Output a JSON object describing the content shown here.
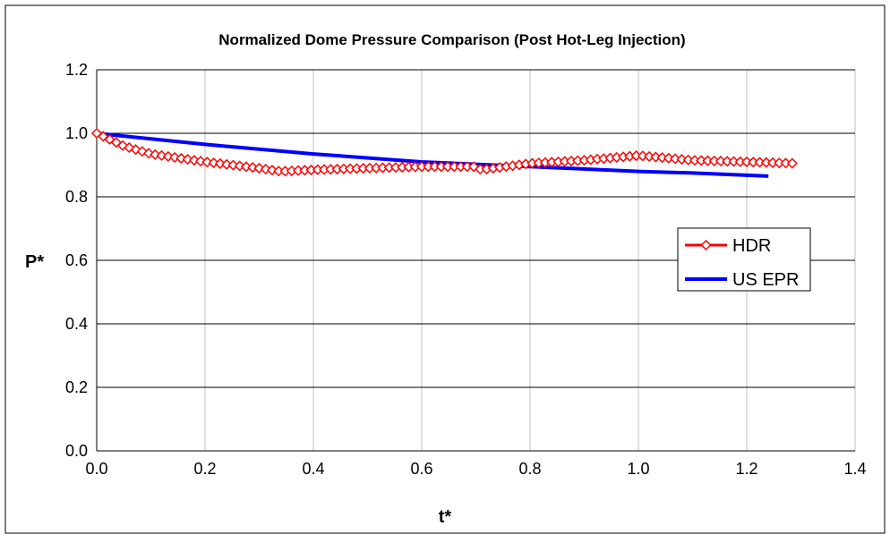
{
  "chart_data": {
    "type": "line",
    "title": "Normalized Dome Pressure Comparison (Post Hot-Leg Injection)",
    "xlabel": "t*",
    "ylabel": "P*",
    "xlim": [
      0,
      1.4
    ],
    "ylim": [
      0,
      1.2
    ],
    "xticks": [
      "0.0",
      "0.2",
      "0.4",
      "0.6",
      "0.8",
      "1.0",
      "1.2",
      "1.4"
    ],
    "yticks": [
      "0.0",
      "0.2",
      "0.4",
      "0.6",
      "0.8",
      "1.0",
      "1.2"
    ],
    "grid": true,
    "legend_position": "right",
    "series": [
      {
        "name": "HDR",
        "color": "#ff0000",
        "marker": "diamond",
        "x": [
          0,
          0.05,
          0.1,
          0.2,
          0.3,
          0.34,
          0.4,
          0.5,
          0.6,
          0.7,
          0.71,
          0.8,
          0.9,
          1.0,
          1.1,
          1.2,
          1.29
        ],
        "y": [
          1.0,
          0.96,
          0.935,
          0.91,
          0.89,
          0.88,
          0.885,
          0.89,
          0.895,
          0.895,
          0.885,
          0.905,
          0.915,
          0.93,
          0.915,
          0.91,
          0.905
        ]
      },
      {
        "name": "US EPR",
        "color": "#0000ff",
        "marker": "none",
        "x": [
          0,
          0.2,
          0.4,
          0.6,
          0.8,
          1.0,
          1.1,
          1.24
        ],
        "y": [
          1.0,
          0.965,
          0.935,
          0.91,
          0.895,
          0.88,
          0.875,
          0.865
        ]
      }
    ]
  }
}
